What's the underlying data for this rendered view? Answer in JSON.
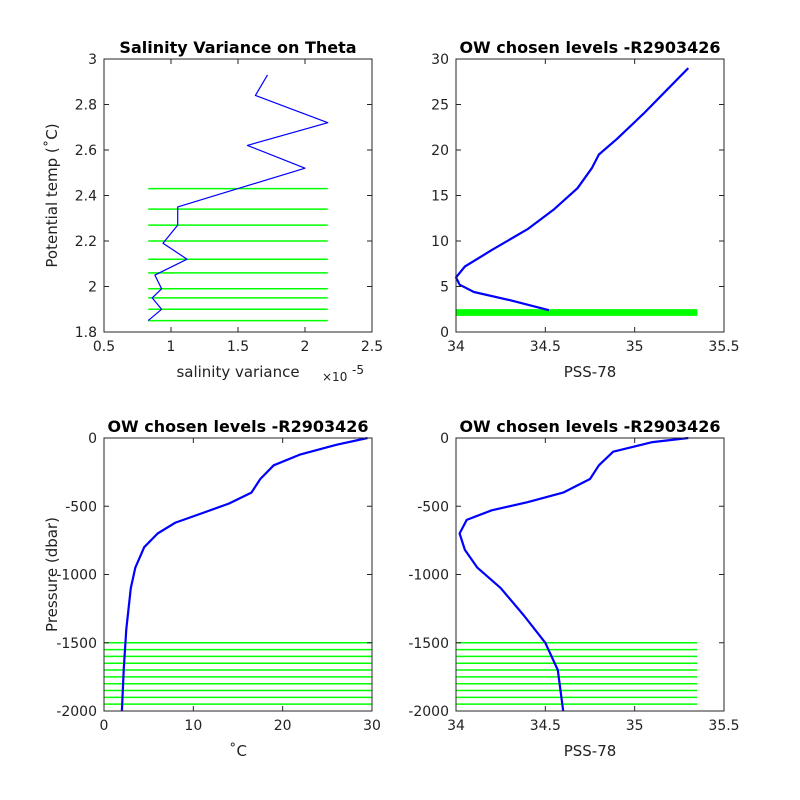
{
  "colors": {
    "profile": "#0000ff",
    "levels": "#00ff00",
    "axes": "#262626"
  },
  "chart_data": [
    {
      "type": "line",
      "title": "Salinity Variance on Theta",
      "xlabel": "salinity variance",
      "x_exponent": "×10",
      "x_exponent_power": "-5",
      "ylabel": "Potential temp (˚C)",
      "xlim": [
        0.5,
        2.5
      ],
      "ylim": [
        1.8,
        3.0
      ],
      "xticks": [
        0.5,
        1,
        1.5,
        2,
        2.5
      ],
      "xtick_labels": [
        "0.5",
        "1",
        "1.5",
        "2",
        "2.5"
      ],
      "yticks": [
        1.8,
        2.0,
        2.2,
        2.4,
        2.6,
        2.8,
        3.0
      ],
      "ytick_labels": [
        "1.8",
        "2",
        "2.2",
        "2.4",
        "2.6",
        "2.8",
        "3"
      ],
      "series": [
        {
          "x": [
            1.72,
            1.63,
            2.17,
            1.57,
            2.0,
            1.05,
            1.05,
            0.94,
            1.12,
            0.88,
            0.93,
            0.86,
            0.93,
            0.83
          ],
          "y": [
            2.93,
            2.84,
            2.72,
            2.62,
            2.52,
            2.35,
            2.27,
            2.19,
            2.12,
            2.05,
            1.99,
            1.95,
            1.9,
            1.85
          ]
        }
      ],
      "hlines": {
        "y": [
          2.43,
          2.34,
          2.27,
          2.2,
          2.12,
          2.06,
          1.99,
          1.95,
          1.9,
          1.85
        ],
        "xmin": 0.83,
        "xmax": 2.17
      }
    },
    {
      "type": "line",
      "title": "OW chosen levels -R2903426",
      "xlabel": "PSS-78",
      "ylabel": "",
      "xlim": [
        34.0,
        35.5
      ],
      "ylim": [
        0,
        30
      ],
      "xticks": [
        34,
        34.5,
        35,
        35.5
      ],
      "xtick_labels": [
        "34",
        "34.5",
        "35",
        "35.5"
      ],
      "yticks": [
        0,
        5,
        10,
        15,
        20,
        25,
        30
      ],
      "ytick_labels": [
        "0",
        "5",
        "10",
        "15",
        "20",
        "25",
        "30"
      ],
      "series": [
        {
          "x": [
            34.52,
            34.3,
            34.1,
            34.02,
            34.0,
            34.05,
            34.2,
            34.4,
            34.55,
            34.68,
            34.76,
            34.8,
            34.9,
            35.05,
            35.2,
            35.3
          ],
          "y": [
            2.4,
            3.5,
            4.4,
            5.2,
            6.0,
            7.2,
            9.0,
            11.3,
            13.5,
            15.8,
            18.0,
            19.5,
            21.2,
            24.0,
            27.0,
            29.0
          ]
        }
      ],
      "hlines": {
        "y": [
          1.85,
          1.9,
          1.95,
          1.99,
          2.05,
          2.12,
          2.19,
          2.27,
          2.35,
          2.43
        ],
        "xmin": 34.0,
        "xmax": 35.35
      }
    },
    {
      "type": "line",
      "title": "OW chosen levels -R2903426",
      "xlabel": "˚C",
      "ylabel": "Pressure (dbar)",
      "xlim": [
        0,
        30
      ],
      "ylim": [
        -2000,
        0
      ],
      "xticks": [
        0,
        10,
        20,
        30
      ],
      "xtick_labels": [
        "0",
        "10",
        "20",
        "30"
      ],
      "yticks": [
        -2000,
        -1500,
        -1000,
        -500,
        0
      ],
      "ytick_labels": [
        "-2000",
        "-1500",
        "-1000",
        "-500",
        "0"
      ],
      "series": [
        {
          "x": [
            2.0,
            2.2,
            2.5,
            3.0,
            3.5,
            4.5,
            6.0,
            8.0,
            11.0,
            14.0,
            16.5,
            17.5,
            19.0,
            22.0,
            26.0,
            29.5
          ],
          "y": [
            -2000,
            -1700,
            -1400,
            -1100,
            -950,
            -800,
            -700,
            -620,
            -550,
            -480,
            -400,
            -300,
            -200,
            -120,
            -50,
            0
          ]
        }
      ],
      "hlines": {
        "y": [
          -1500,
          -1550,
          -1600,
          -1650,
          -1700,
          -1750,
          -1800,
          -1850,
          -1900,
          -1950
        ],
        "xmin": 0,
        "xmax": 30
      }
    },
    {
      "type": "line",
      "title": "OW chosen levels -R2903426",
      "xlabel": "PSS-78",
      "ylabel": "",
      "xlim": [
        34.0,
        35.5
      ],
      "ylim": [
        -2000,
        0
      ],
      "xticks": [
        34,
        34.5,
        35,
        35.5
      ],
      "xtick_labels": [
        "34",
        "34.5",
        "35",
        "35.5"
      ],
      "yticks": [
        -2000,
        -1500,
        -1000,
        -500,
        0
      ],
      "ytick_labels": [
        "-2000",
        "-1500",
        "-1000",
        "-500",
        "0"
      ],
      "series": [
        {
          "x": [
            34.6,
            34.57,
            34.5,
            34.38,
            34.25,
            34.12,
            34.05,
            34.02,
            34.06,
            34.2,
            34.4,
            34.6,
            34.75,
            34.8,
            34.88,
            35.1,
            35.3
          ],
          "y": [
            -2000,
            -1700,
            -1500,
            -1300,
            -1100,
            -950,
            -820,
            -700,
            -600,
            -530,
            -470,
            -400,
            -300,
            -200,
            -100,
            -30,
            0
          ]
        }
      ],
      "hlines": {
        "y": [
          -1500,
          -1550,
          -1600,
          -1650,
          -1700,
          -1750,
          -1800,
          -1850,
          -1900,
          -1950
        ],
        "xmin": 34.0,
        "xmax": 35.35
      }
    }
  ]
}
